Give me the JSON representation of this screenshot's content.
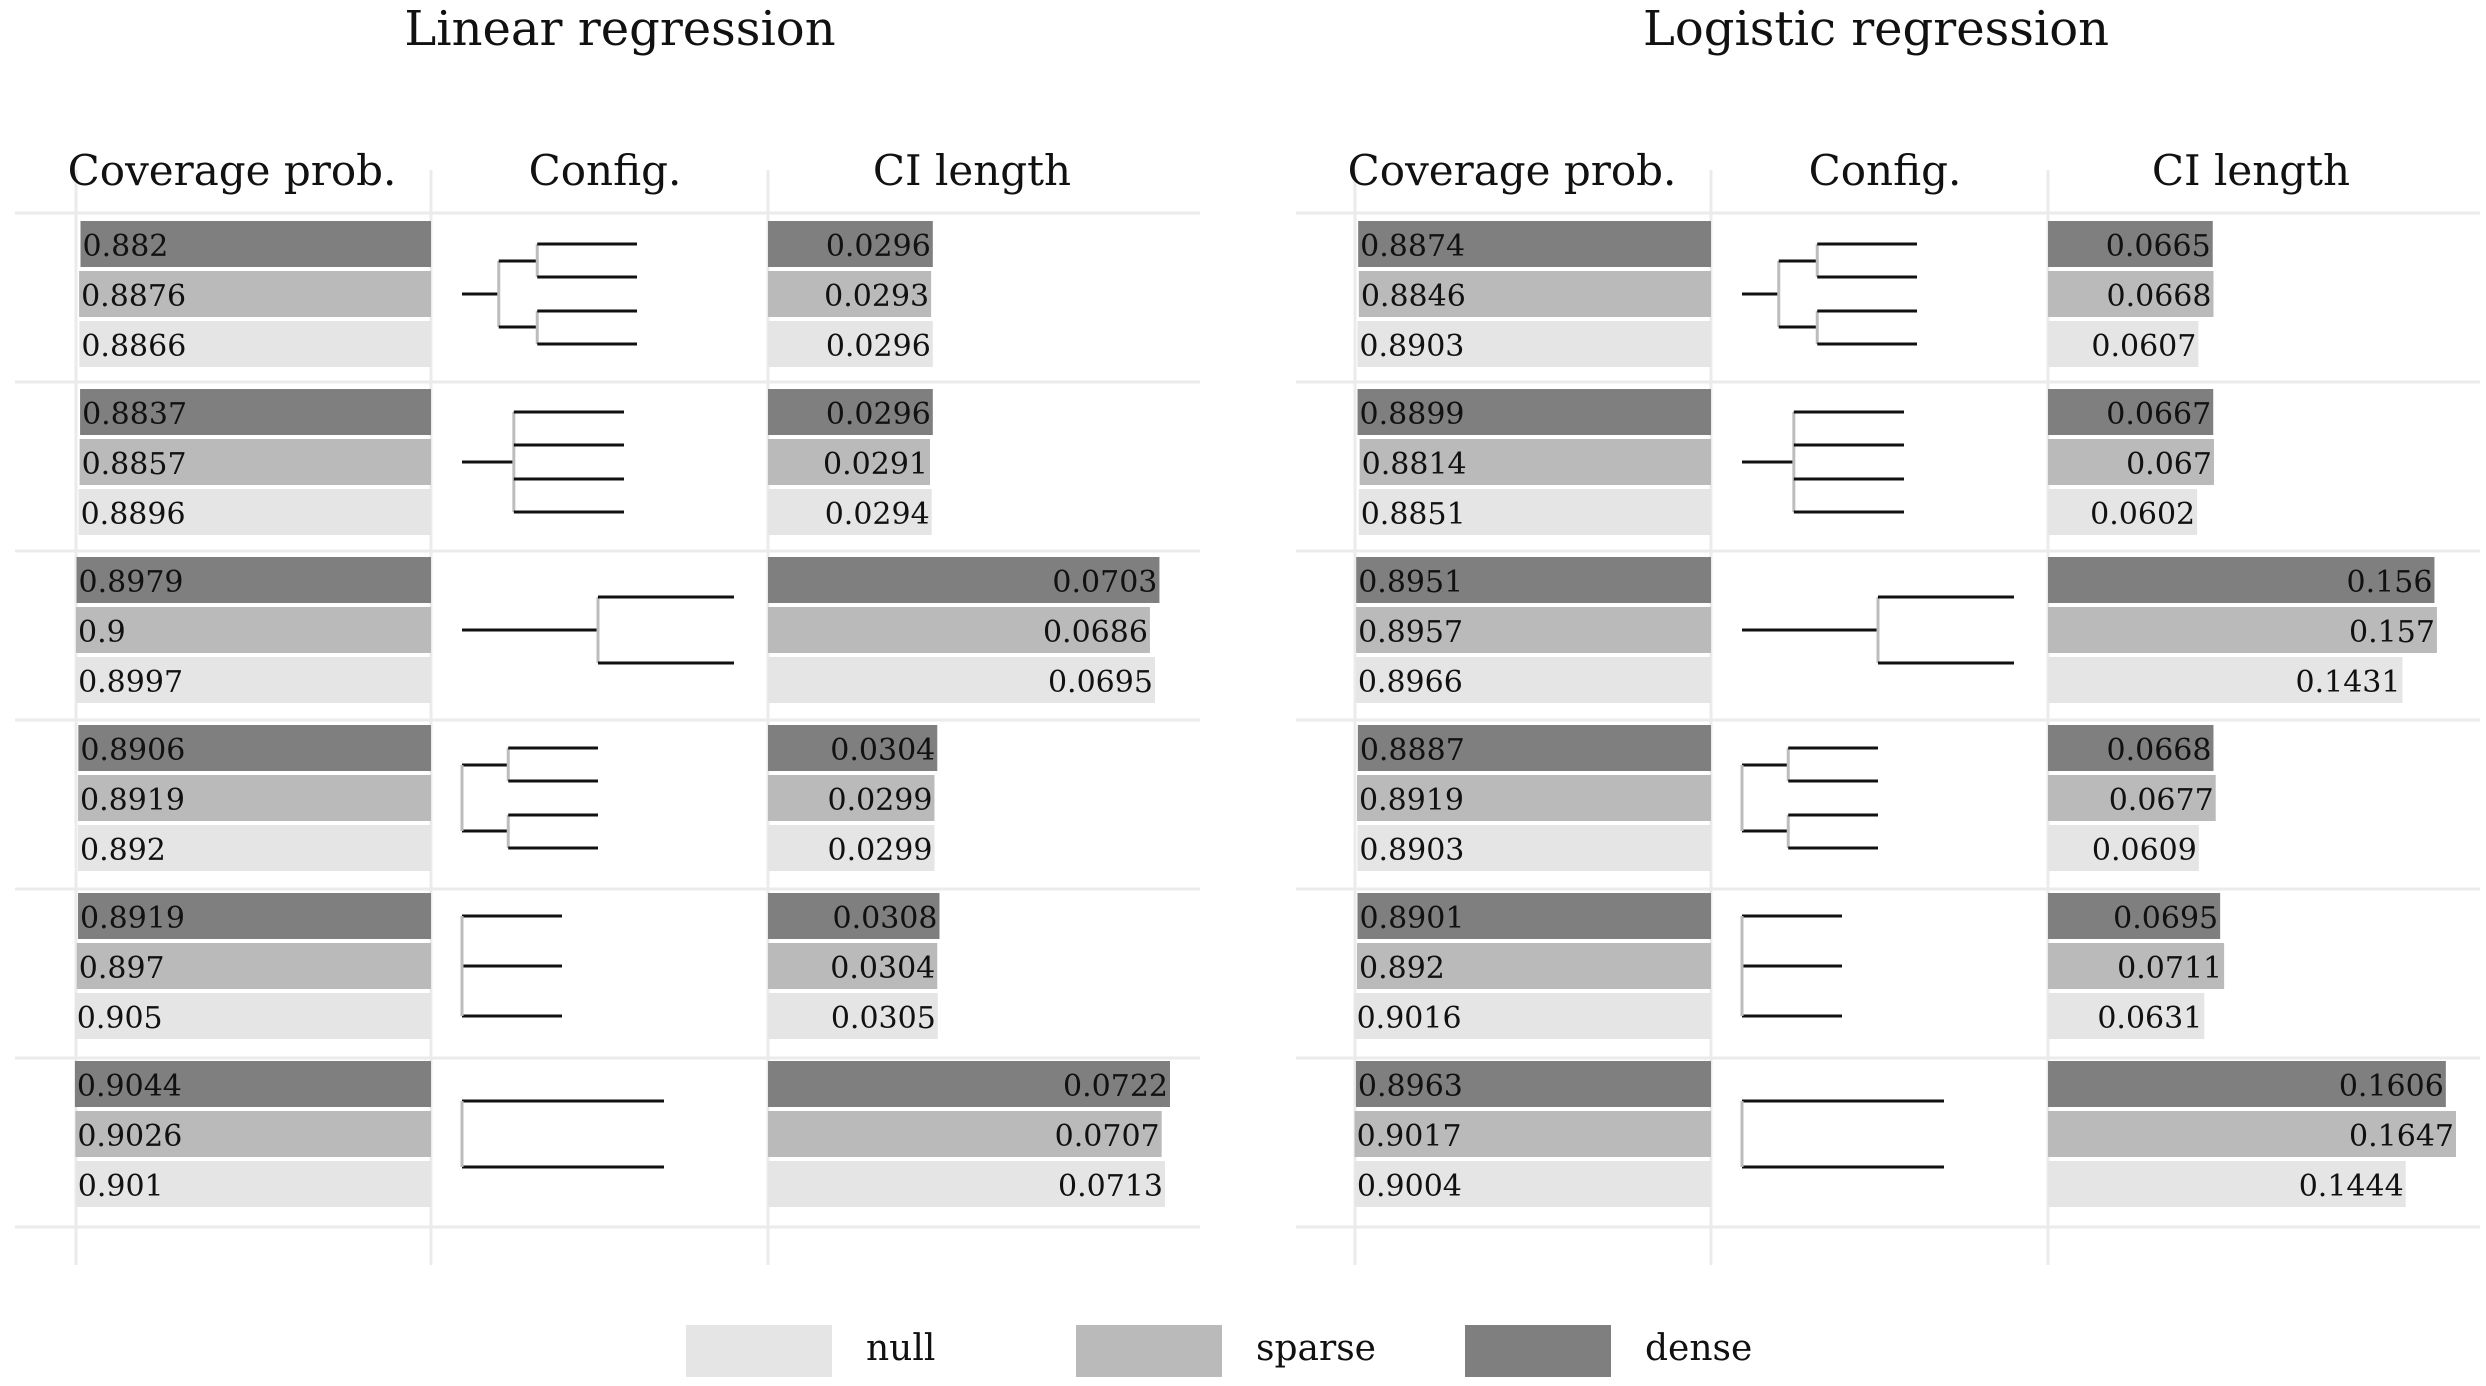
{
  "chart_data": [
    {
      "type": "bar",
      "title": "Linear regression",
      "columns": [
        "Coverage prob.",
        "Config.",
        "CI length"
      ],
      "configs": [
        "binary-4",
        "flat-4",
        "binary-2",
        "pairs-4",
        "separate-3",
        "separate-2"
      ],
      "series": [
        {
          "name": "dense",
          "coverage": [
            0.882,
            0.8837,
            0.8979,
            0.8906,
            0.8919,
            0.9044
          ],
          "coverage_labels": [
            "0.882",
            "0.8837",
            "0.8979",
            "0.8906",
            "0.8919",
            "0.9044"
          ],
          "ci_length": [
            0.0296,
            0.0296,
            0.0703,
            0.0304,
            0.0308,
            0.0722
          ],
          "ci_labels": [
            "0.0296",
            "0.0296",
            "0.0703",
            "0.0304",
            "0.0308",
            "0.0722"
          ]
        },
        {
          "name": "sparse",
          "coverage": [
            0.8876,
            0.8857,
            0.9,
            0.8919,
            0.897,
            0.9026
          ],
          "coverage_labels": [
            "0.8876",
            "0.8857",
            "0.9",
            "0.8919",
            "0.897",
            "0.9026"
          ],
          "ci_length": [
            0.0293,
            0.0291,
            0.0686,
            0.0299,
            0.0304,
            0.0707
          ],
          "ci_labels": [
            "0.0293",
            "0.0291",
            "0.0686",
            "0.0299",
            "0.0304",
            "0.0707"
          ]
        },
        {
          "name": "null",
          "coverage": [
            0.8866,
            0.8896,
            0.8997,
            0.892,
            0.905,
            0.901
          ],
          "coverage_labels": [
            "0.8866",
            "0.8896",
            "0.8997",
            "0.892",
            "0.905",
            "0.901"
          ],
          "ci_length": [
            0.0296,
            0.0294,
            0.0695,
            0.0299,
            0.0305,
            0.0713
          ],
          "ci_labels": [
            "0.0296",
            "0.0294",
            "0.0695",
            "0.0299",
            "0.0305",
            "0.0713"
          ]
        }
      ]
    },
    {
      "type": "bar",
      "title": "Logistic regression",
      "columns": [
        "Coverage prob.",
        "Config.",
        "CI length"
      ],
      "configs": [
        "binary-4",
        "flat-4",
        "binary-2",
        "pairs-4",
        "separate-3",
        "separate-2"
      ],
      "series": [
        {
          "name": "dense",
          "coverage": [
            0.8874,
            0.8899,
            0.8951,
            0.8887,
            0.8901,
            0.8963
          ],
          "coverage_labels": [
            "0.8874",
            "0.8899",
            "0.8951",
            "0.8887",
            "0.8901",
            "0.8963"
          ],
          "ci_length": [
            0.0665,
            0.0667,
            0.156,
            0.0668,
            0.0695,
            0.1606
          ],
          "ci_labels": [
            "0.0665",
            "0.0667",
            "0.156",
            "0.0668",
            "0.0695",
            "0.1606"
          ]
        },
        {
          "name": "sparse",
          "coverage": [
            0.8846,
            0.8814,
            0.8957,
            0.8919,
            0.892,
            0.9017
          ],
          "coverage_labels": [
            "0.8846",
            "0.8814",
            "0.8957",
            "0.8919",
            "0.892",
            "0.9017"
          ],
          "ci_length": [
            0.0668,
            0.067,
            0.157,
            0.0677,
            0.0711,
            0.1647
          ],
          "ci_labels": [
            "0.0668",
            "0.067",
            "0.157",
            "0.0677",
            "0.0711",
            "0.1647"
          ]
        },
        {
          "name": "null",
          "coverage": [
            0.8903,
            0.8851,
            0.8966,
            0.8903,
            0.9016,
            0.9004
          ],
          "coverage_labels": [
            "0.8903",
            "0.8851",
            "0.8966",
            "0.8903",
            "0.9016",
            "0.9004"
          ],
          "ci_length": [
            0.0607,
            0.0602,
            0.1431,
            0.0609,
            0.0631,
            0.1444
          ],
          "ci_labels": [
            "0.0607",
            "0.0602",
            "0.1431",
            "0.0609",
            "0.0631",
            "0.1444"
          ]
        }
      ]
    }
  ],
  "legend": {
    "placement": "bottom-center",
    "items": [
      {
        "name": "null",
        "color": "#e5e5e5"
      },
      {
        "name": "sparse",
        "color": "#bababa"
      },
      {
        "name": "dense",
        "color": "#7f7f7f"
      }
    ]
  },
  "colors": {
    "dense": "#7f7f7f",
    "sparse": "#bababa",
    "null": "#e5e5e5",
    "grid": "#ebebeb",
    "tree": "#111111"
  }
}
